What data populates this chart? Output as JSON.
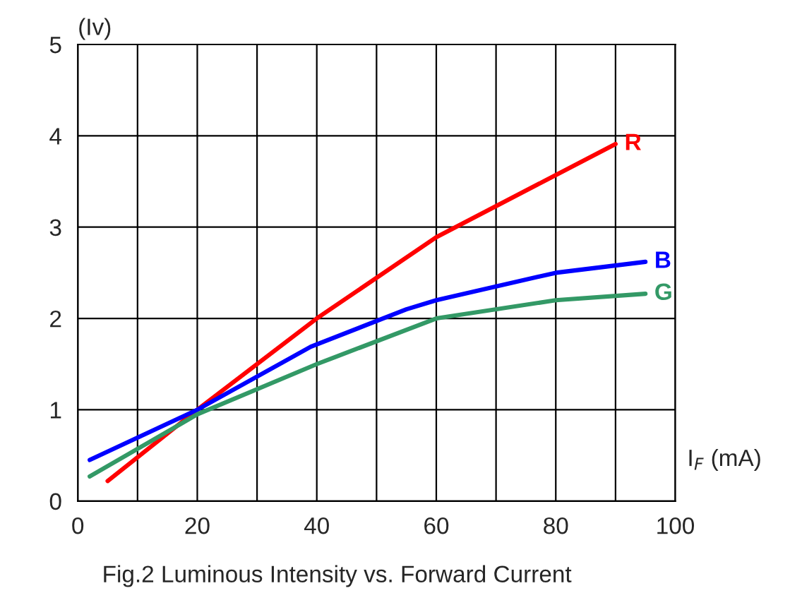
{
  "chart_data": {
    "type": "line",
    "title": "Fig.2 Luminous Intensity vs. Forward Current",
    "xlabel": "I$_{F}$ (mA)",
    "ylabel": "(Iv)",
    "xlim": [
      0,
      100
    ],
    "ylim": [
      0,
      5
    ],
    "xticks": [
      0,
      {
        "value": 10,
        "label": null
      },
      20,
      {
        "value": 30,
        "label": null
      },
      40,
      {
        "value": 50,
        "label": null
      },
      60,
      {
        "value": 70,
        "label": null
      },
      80,
      {
        "value": 90,
        "label": null
      },
      100
    ],
    "yticks": [
      0,
      1,
      2,
      3,
      4,
      5
    ],
    "grid": true,
    "legend": false,
    "marker": "none",
    "line_style": "solid",
    "series": [
      {
        "name": "R",
        "color": "#ff0000",
        "x": [
          5,
          20,
          40,
          60,
          90
        ],
        "values": [
          0.22,
          1.0,
          2.0,
          2.89,
          3.91
        ]
      },
      {
        "name": "B",
        "color": "#0000ff",
        "x": [
          2,
          20,
          39,
          55,
          60,
          80,
          95
        ],
        "values": [
          0.45,
          1.0,
          1.69,
          2.1,
          2.2,
          2.5,
          2.62
        ]
      },
      {
        "name": "G",
        "color": "#339966",
        "x": [
          2,
          20,
          40,
          60,
          80,
          95
        ],
        "values": [
          0.27,
          0.95,
          1.5,
          2.0,
          2.2,
          2.27
        ]
      }
    ]
  }
}
